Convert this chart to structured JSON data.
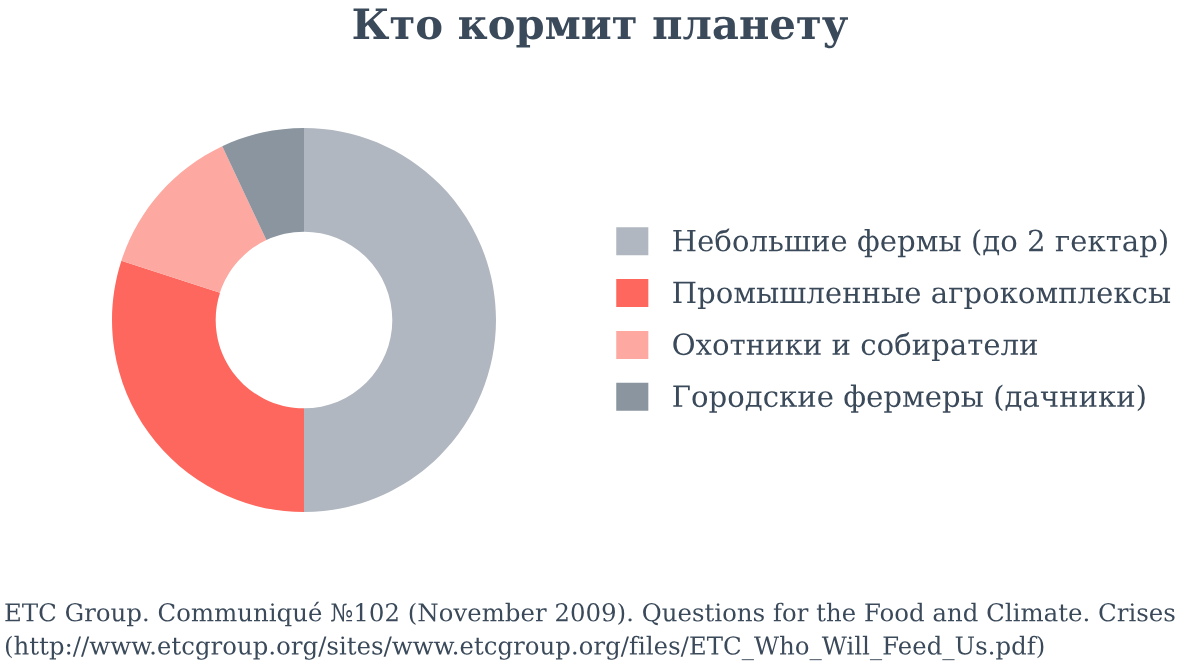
{
  "chart_data": {
    "type": "donut",
    "title": "Кто кормит планету",
    "categories": [
      "Небольшие фермы (до 2 гектар)",
      "Промышленные агрокомплексы",
      "Охотники и собиратели",
      "Городские фермеры (дачники)"
    ],
    "values": [
      50,
      30,
      13,
      7
    ],
    "colors": [
      "#b0b7c0",
      "#fe675d",
      "#fda8a0",
      "#8a959f"
    ],
    "legend": "right",
    "annotations": [
      "ETC Group. Communiqué №102 (November 2009). Questions for the Food and Climate. Crises",
      "(http://www.etcgroup.org/sites/www.etcgroup.org/files/ETC_Who_Will_Feed_Us.pdf)"
    ]
  }
}
